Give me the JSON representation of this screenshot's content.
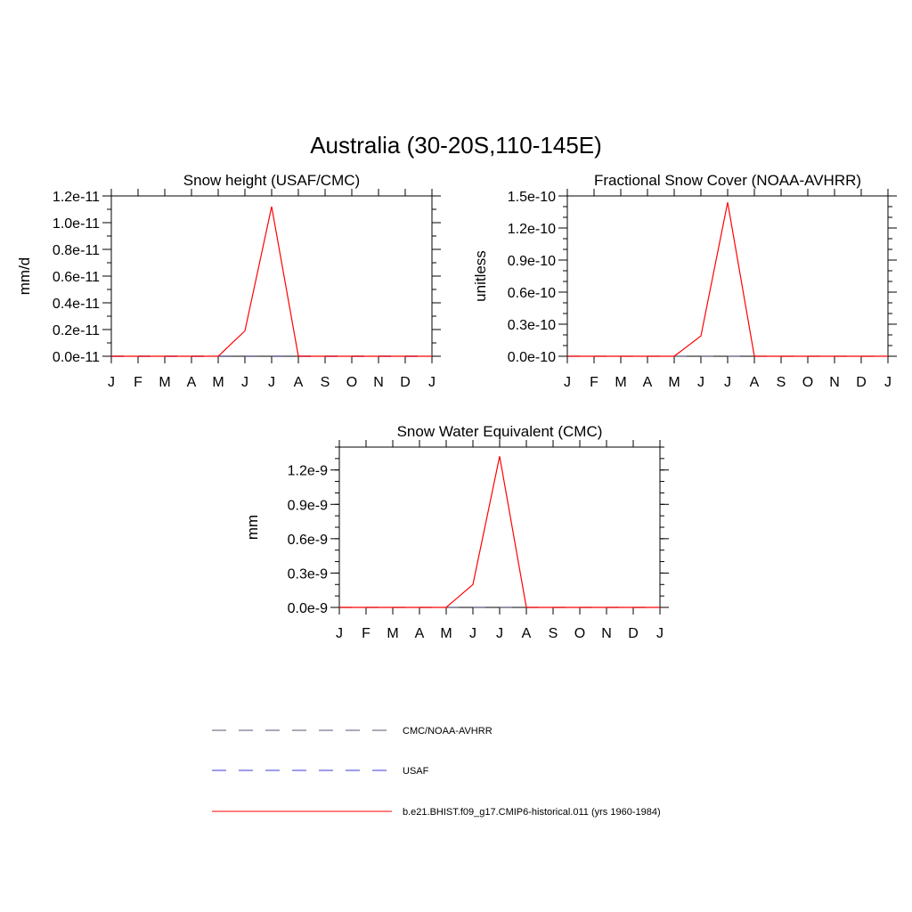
{
  "figure_title": "Australia (30-20S,110-145E)",
  "colors": {
    "model": "#ff0000",
    "usaf": "#3b3bd6",
    "cmc_noaa": "#555577",
    "axis": "#000000"
  },
  "legend": {
    "items": [
      {
        "label": "CMC/NOAA-AVHRR",
        "style": "dashed",
        "color": "#555577"
      },
      {
        "label": "USAF",
        "style": "dashed",
        "color": "#3b3bd6"
      },
      {
        "label": "b.e21.BHIST.f09_g17.CMIP6-historical.011 (yrs 1960-1984)",
        "style": "solid",
        "color": "#ff0000"
      }
    ]
  },
  "chart_data": [
    {
      "type": "line",
      "title": "Snow height (USAF/CMC)",
      "xlabel": "",
      "ylabel": "mm/d",
      "categories": [
        "J",
        "F",
        "M",
        "A",
        "M",
        "J",
        "J",
        "A",
        "S",
        "O",
        "N",
        "D",
        "J"
      ],
      "ylim": [
        0,
        1.2e-11
      ],
      "yticks": [
        0,
        2e-12,
        4e-12,
        6e-12,
        8e-12,
        1e-11,
        1.2e-11
      ],
      "yticklabels": [
        "0.0e-11",
        "0.2e-11",
        "0.4e-11",
        "0.6e-11",
        "0.8e-11",
        "1.0e-11",
        "1.2e-11"
      ],
      "series": [
        {
          "name": "b.e21.BHIST.f09_g17.CMIP6-historical.011 (yrs 1960-1984)",
          "style": "solid",
          "color": "#ff0000",
          "values": [
            0,
            0,
            0,
            0,
            0,
            1.9e-12,
            1.12e-11,
            0,
            0,
            0,
            0,
            0,
            0
          ]
        },
        {
          "name": "USAF",
          "style": "dashed",
          "color": "#3b3bd6",
          "values": [
            0,
            0,
            0,
            0,
            0,
            0,
            0,
            0,
            0,
            0,
            0,
            0,
            0
          ]
        },
        {
          "name": "CMC/NOAA-AVHRR",
          "style": "dashed",
          "color": "#555577",
          "values": [
            0,
            0,
            0,
            0,
            0,
            0,
            0,
            0,
            0,
            0,
            0,
            0,
            0
          ]
        }
      ]
    },
    {
      "type": "line",
      "title": "Fractional Snow Cover (NOAA-AVHRR)",
      "xlabel": "",
      "ylabel": "unitless",
      "categories": [
        "J",
        "F",
        "M",
        "A",
        "M",
        "J",
        "J",
        "A",
        "S",
        "O",
        "N",
        "D",
        "J"
      ],
      "ylim": [
        0,
        1.5e-10
      ],
      "yticks": [
        0,
        3e-11,
        6e-11,
        9e-11,
        1.2e-10,
        1.5e-10
      ],
      "yticklabels": [
        "0.0e-10",
        "0.3e-10",
        "0.6e-10",
        "0.9e-10",
        "1.2e-10",
        "1.5e-10"
      ],
      "series": [
        {
          "name": "b.e21.BHIST.f09_g17.CMIP6-historical.011 (yrs 1960-1984)",
          "style": "solid",
          "color": "#ff0000",
          "values": [
            0,
            0,
            0,
            0,
            0,
            1.9e-11,
            1.44e-10,
            0,
            0,
            0,
            0,
            0,
            0
          ]
        },
        {
          "name": "CMC/NOAA-AVHRR",
          "style": "dashed",
          "color": "#555577",
          "values": [
            0,
            0,
            0,
            0,
            0,
            0,
            0,
            0,
            0,
            0,
            0,
            0,
            0
          ]
        }
      ]
    },
    {
      "type": "line",
      "title": "Snow Water Equivalent (CMC)",
      "xlabel": "",
      "ylabel": "mm",
      "categories": [
        "J",
        "F",
        "M",
        "A",
        "M",
        "J",
        "J",
        "A",
        "S",
        "O",
        "N",
        "D",
        "J"
      ],
      "ylim": [
        0,
        1.4e-09
      ],
      "yticks": [
        0,
        3e-10,
        6e-10,
        9e-10,
        1.2e-09
      ],
      "yticklabels": [
        "0.0e-9",
        "0.3e-9",
        "0.6e-9",
        "0.9e-9",
        "1.2e-9"
      ],
      "series": [
        {
          "name": "b.e21.BHIST.f09_g17.CMIP6-historical.011 (yrs 1960-1984)",
          "style": "solid",
          "color": "#ff0000",
          "values": [
            0,
            0,
            0,
            0,
            0,
            2e-10,
            1.32e-09,
            0,
            0,
            0,
            0,
            0,
            0
          ]
        },
        {
          "name": "CMC/NOAA-AVHRR",
          "style": "dashed",
          "color": "#555577",
          "values": [
            0,
            0,
            0,
            0,
            0,
            0,
            0,
            0,
            0,
            0,
            0,
            0,
            0
          ]
        }
      ]
    }
  ]
}
